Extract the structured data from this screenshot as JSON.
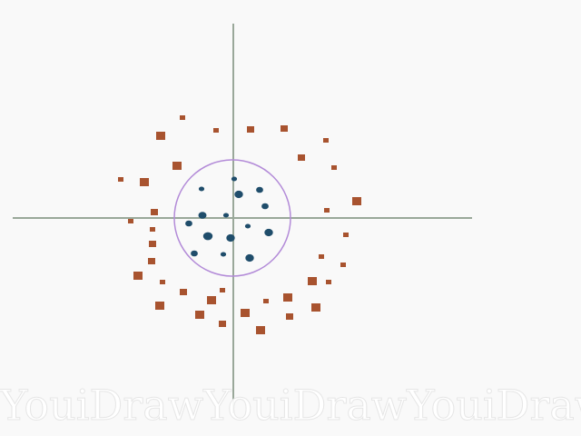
{
  "diagram": {
    "colors": {
      "background": "#f9f9f9",
      "axis": "#9aa89a",
      "circle": "#b38bd8",
      "inner_points": "#1f4d6b",
      "outer_points": "#a8532f"
    },
    "boundary_shape": "circle",
    "inner_marker": "circle",
    "outer_marker": "square"
  },
  "watermark": {
    "text": [
      "YouiDraw",
      "YouiDraw",
      "YouiDraw"
    ]
  }
}
